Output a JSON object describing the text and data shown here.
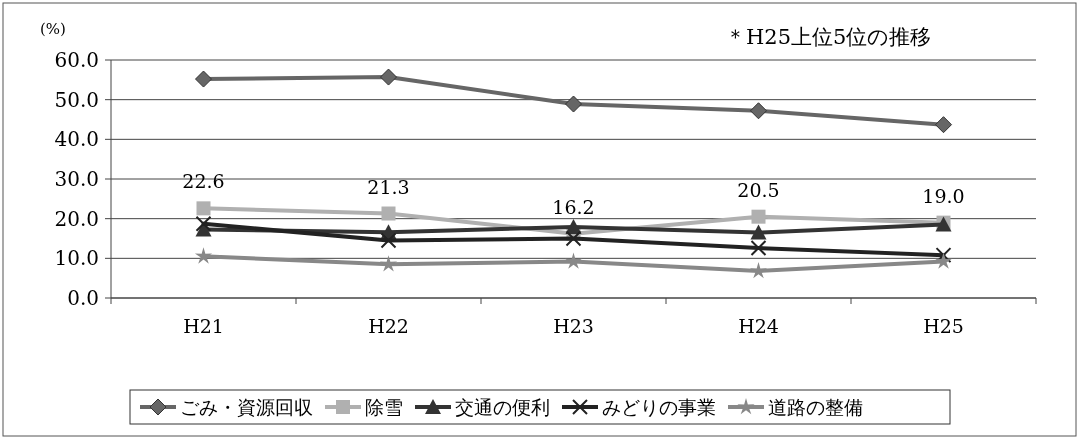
{
  "chart_data": {
    "type": "line",
    "ylabel": "(%)",
    "annotations": [
      "＊H25上位5位の推移"
    ],
    "categories": [
      "H21",
      "H22",
      "H23",
      "H24",
      "H25"
    ],
    "ylim": [
      0,
      60
    ],
    "yticks": [
      {
        "value": 0,
        "label": "0.0"
      },
      {
        "value": 10,
        "label": "10.0"
      },
      {
        "value": 20,
        "label": "20.0"
      },
      {
        "value": 30,
        "label": "30.0"
      },
      {
        "value": 40,
        "label": "40.0"
      },
      {
        "value": 50,
        "label": "50.0"
      },
      {
        "value": 60,
        "label": "60.0"
      }
    ],
    "grid": "y",
    "legend": "bottom",
    "series": [
      {
        "name": "ごみ・資源回収",
        "color": "#666666",
        "marker": "diamond",
        "values": [
          55.2,
          55.7,
          48.9,
          47.2,
          43.7
        ]
      },
      {
        "name": "除雪",
        "color": "#b0b0b0",
        "marker": "square",
        "values": [
          22.6,
          21.3,
          16.2,
          20.5,
          19.0
        ],
        "value_labels": [
          "22.6",
          "21.3",
          "16.2",
          "20.5",
          "19.0"
        ]
      },
      {
        "name": "交通の便利",
        "color": "#333333",
        "marker": "triangle",
        "values": [
          17.3,
          16.6,
          17.9,
          16.5,
          18.5
        ]
      },
      {
        "name": "みどりの事業",
        "color": "#222222",
        "marker": "cross",
        "values": [
          18.7,
          14.5,
          15.0,
          12.6,
          10.8
        ]
      },
      {
        "name": "道路の整備",
        "color": "#888888",
        "marker": "star",
        "values": [
          10.5,
          8.5,
          9.2,
          6.8,
          9.2
        ]
      }
    ]
  }
}
